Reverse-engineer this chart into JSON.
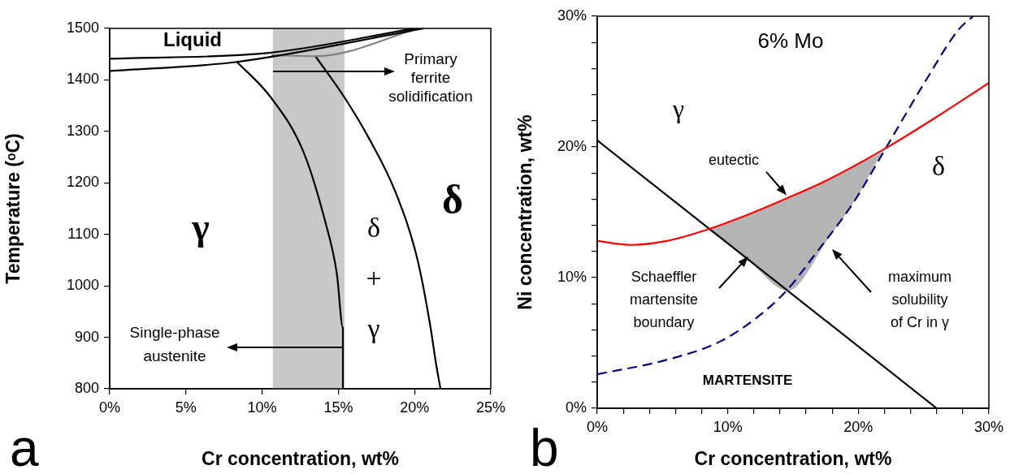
{
  "chart_data": [
    {
      "type": "line",
      "xlabel": "Cr concentration, wt%",
      "ylabel": "Temperature (ᵒC)",
      "xlim": [
        0,
        25
      ],
      "xticks": [
        {
          "value": 0,
          "label": "0%"
        },
        {
          "value": 5,
          "label": "5%"
        },
        {
          "value": 10,
          "label": "10%"
        },
        {
          "value": 15,
          "label": "15%"
        },
        {
          "value": 20,
          "label": "20%"
        },
        {
          "value": 25,
          "label": "25%"
        }
      ],
      "ylim": [
        800,
        1500
      ],
      "yticks": [
        800,
        900,
        1000,
        1100,
        1200,
        1300,
        1400,
        1500
      ],
      "grid": false,
      "legend": false,
      "bands": [
        {
          "axis": "x",
          "from": 10.7,
          "to": 15.4,
          "color": "#c8c8c8"
        }
      ],
      "series": [
        {
          "color": "#000000",
          "x": [
            0,
            10.6,
            20.0
          ],
          "values": [
            1441,
            1453,
            1500
          ]
        },
        {
          "color": "#000000",
          "x": [
            0,
            8.35,
            20.6
          ],
          "values": [
            1417,
            1435,
            1500
          ]
        },
        {
          "color": "#808080",
          "x": [
            10.6,
            13.5,
            20.3
          ],
          "values": [
            1448,
            1446,
            1500
          ]
        },
        {
          "color": "#000000",
          "x": [
            8.35,
            10.57,
            12.7,
            14.1,
            14.9,
            15.3,
            15.3
          ],
          "values": [
            1435,
            1366,
            1261,
            1129,
            1024,
            919,
            800
          ]
        },
        {
          "color": "#000000",
          "x": [
            13.5,
            15.4,
            17.0,
            18.75,
            20.2,
            21.05,
            21.4,
            21.7
          ],
          "values": [
            1446,
            1366,
            1287,
            1182,
            1050,
            919,
            850,
            800
          ]
        }
      ],
      "annotations": [
        "Liquid",
        "γ",
        "δ",
        "δ\n+\nγ",
        "Primary\nferrite\nsolidification",
        "Single-phase\naustenite",
        "a"
      ]
    },
    {
      "type": "line",
      "xlabel": "Cr concentration, wt%",
      "ylabel": "Ni concentration, wt%",
      "xlim": [
        0,
        30
      ],
      "xticks": [
        {
          "value": 0,
          "label": "0%"
        },
        {
          "value": 2,
          "label": null
        },
        {
          "value": 4,
          "label": null
        },
        {
          "value": 6,
          "label": null
        },
        {
          "value": 8,
          "label": null
        },
        {
          "value": 10,
          "label": "10%"
        },
        {
          "value": 12,
          "label": null
        },
        {
          "value": 14,
          "label": null
        },
        {
          "value": 16,
          "label": null
        },
        {
          "value": 18,
          "label": null
        },
        {
          "value": 20,
          "label": "20%"
        },
        {
          "value": 22,
          "label": null
        },
        {
          "value": 24,
          "label": null
        },
        {
          "value": 26,
          "label": null
        },
        {
          "value": 28,
          "label": null
        },
        {
          "value": 30,
          "label": "30%"
        }
      ],
      "ylim": [
        0,
        30
      ],
      "yticks": [
        {
          "value": 0,
          "label": "0%"
        },
        {
          "value": 2,
          "label": null
        },
        {
          "value": 4,
          "label": null
        },
        {
          "value": 6,
          "label": null
        },
        {
          "value": 8,
          "label": null
        },
        {
          "value": 10,
          "label": "10%"
        },
        {
          "value": 12,
          "label": null
        },
        {
          "value": 14,
          "label": null
        },
        {
          "value": 16,
          "label": null
        },
        {
          "value": 18,
          "label": null
        },
        {
          "value": 20,
          "label": "20%"
        },
        {
          "value": 22,
          "label": null
        },
        {
          "value": 24,
          "label": null
        },
        {
          "value": 26,
          "label": null
        },
        {
          "value": 28,
          "label": null
        },
        {
          "value": 30,
          "label": "30%"
        }
      ],
      "grid": false,
      "legend": false,
      "series": [
        {
          "type": "area",
          "color": "#b4b4b4",
          "x": [
            8.5,
            11.5,
            14.6,
            17.7,
            20.0,
            22.1,
            20.0,
            17.7,
            14.6,
            11.5
          ],
          "values": [
            13.7,
            14.8,
            16.1,
            17.5,
            18.8,
            19.9,
            16.3,
            13.0,
            9.0,
            11.4
          ]
        },
        {
          "color": "#ff0000",
          "x": [
            0,
            2.6,
            5.3,
            8.5,
            11.5,
            14.6,
            17.7,
            22.1,
            26.0,
            30
          ],
          "values": [
            12.8,
            12.5,
            12.8,
            13.7,
            14.8,
            16.1,
            17.5,
            19.9,
            22.3,
            24.9
          ]
        },
        {
          "color": "#000080",
          "line_style": "dashed",
          "x": [
            0,
            5.3,
            9.4,
            12.3,
            14.5,
            16.7,
            19.6,
            22.1,
            25.0,
            27.7,
            28.8
          ],
          "values": [
            2.6,
            3.7,
            5.1,
            7.0,
            9.0,
            11.8,
            15.7,
            19.9,
            24.8,
            29.0,
            30
          ]
        },
        {
          "color": "#000000",
          "x": [
            0,
            26.0
          ],
          "values": [
            20.5,
            0
          ]
        }
      ],
      "annotations": [
        "6% Mo",
        "γ",
        "δ",
        {
          "text": "eutectic",
          "x": 14.5,
          "y": 16.3
        },
        "Schaeffler\nmartensite\nboundary",
        "maximum\nsolubility\nof Cr in γ",
        "MARTENSITE",
        "b"
      ]
    }
  ]
}
